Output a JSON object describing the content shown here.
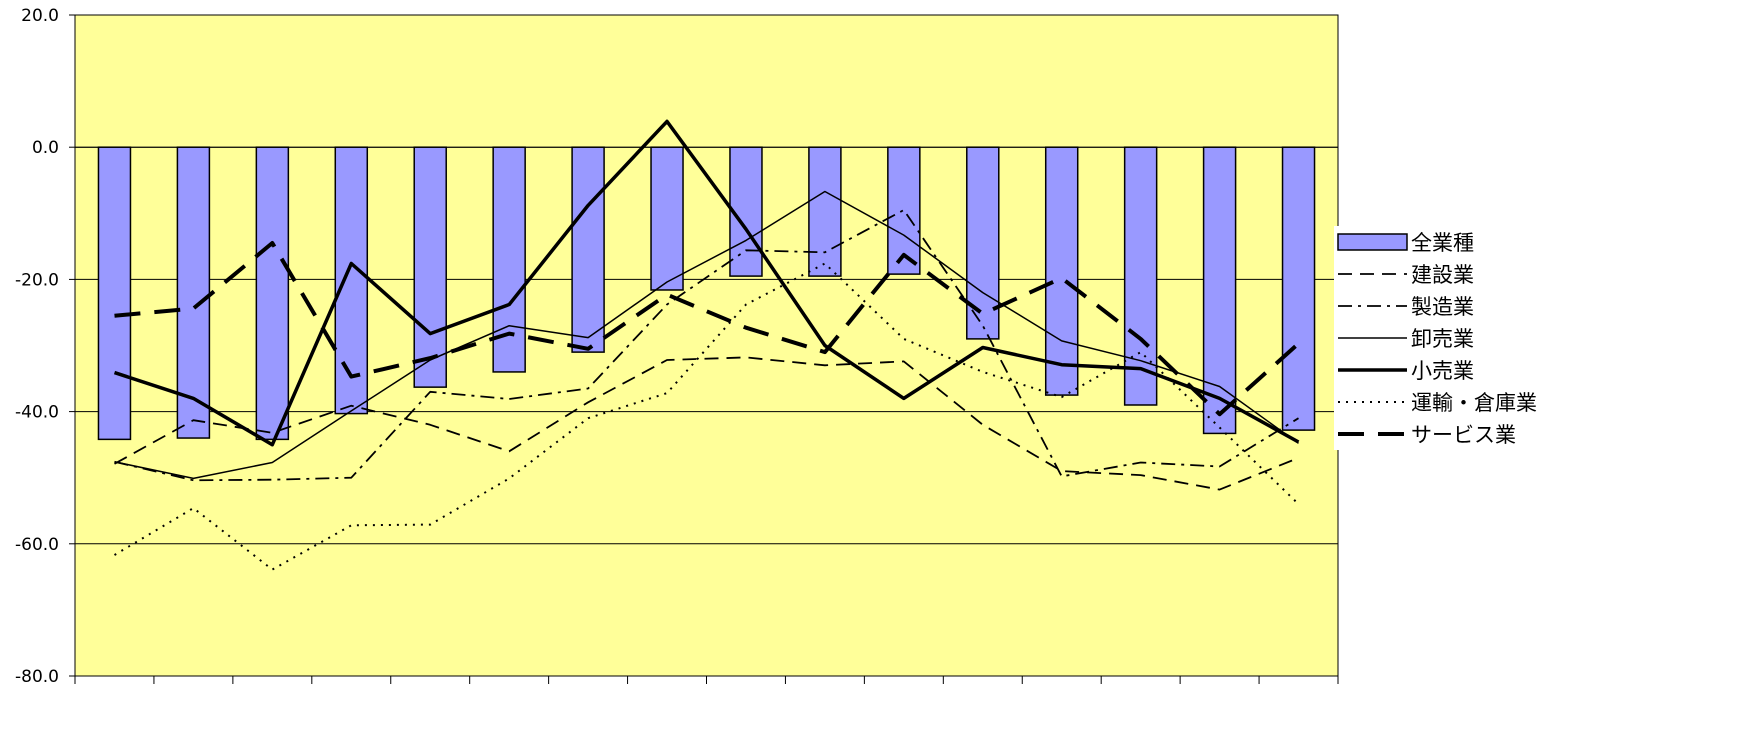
{
  "chart_data": {
    "type": "bar+line",
    "title": "",
    "xlabel": "",
    "ylabel": "",
    "ylim": [
      -80,
      20
    ],
    "yticks": [
      "20.0",
      "0.0",
      "-20.0",
      "-40.0",
      "-60.0",
      "-80.0"
    ],
    "ytick_values": [
      20,
      0,
      -20,
      -40,
      -60,
      -80
    ],
    "grid": "horizontal",
    "legend_position": "right",
    "colors": {
      "plot_background": "#FFFF99",
      "bar_fill": "#9999FF",
      "bar_stroke": "#000000",
      "line": "#000000",
      "gridline": "#000000"
    },
    "bar_series": {
      "name": "全業種",
      "values": [
        -44.2,
        -44.0,
        -44.2,
        -40.3,
        -36.3,
        -34.0,
        -31.0,
        -21.6,
        -19.5,
        -19.5,
        -19.2,
        -29.0,
        -37.5,
        -39.0,
        -43.3,
        -42.8
      ]
    },
    "series": [
      {
        "name": "建設業",
        "style": "dash",
        "values": [
          -47.9,
          -41.3,
          -43.2,
          -39.1,
          -42.0,
          -46.0,
          -38.6,
          -32.2,
          -31.8,
          -33.0,
          -32.4,
          -42.0,
          -49.0,
          -49.6,
          -51.8,
          -47.0
        ]
      },
      {
        "name": "製造業",
        "style": "dashdot",
        "values": [
          -47.6,
          -50.4,
          -50.3,
          -50.0,
          -37.0,
          -38.1,
          -36.5,
          -23.8,
          -15.6,
          -15.9,
          -9.5,
          -27.0,
          -49.8,
          -47.7,
          -48.3,
          -41.0
        ]
      },
      {
        "name": "卸売業",
        "style": "thin",
        "values": [
          -47.6,
          -50.1,
          -47.7,
          -39.9,
          -32.2,
          -27.0,
          -28.8,
          -20.4,
          -14.1,
          -6.7,
          -13.3,
          -22.0,
          -29.3,
          -32.3,
          -36.2,
          -44.8
        ]
      },
      {
        "name": "小売業",
        "style": "thick",
        "values": [
          -34.1,
          -38.0,
          -45.0,
          -17.6,
          -28.2,
          -23.8,
          -8.8,
          3.9,
          -12.4,
          -30.0,
          -38.0,
          -30.3,
          -32.9,
          -33.5,
          -38.0,
          -44.6
        ]
      },
      {
        "name": "運輸・倉庫業",
        "style": "dot",
        "values": [
          -61.7,
          -54.6,
          -63.9,
          -57.2,
          -57.1,
          -50.1,
          -41.0,
          -37.2,
          -23.8,
          -17.6,
          -29.0,
          -34.0,
          -37.8,
          -31.0,
          -42.4,
          -54.0
        ]
      },
      {
        "name": "サービス業",
        "style": "thickdash",
        "values": [
          -25.5,
          -24.4,
          -14.5,
          -34.7,
          -31.9,
          -28.2,
          -30.5,
          -22.3,
          -27.3,
          -31.0,
          -16.3,
          -25.2,
          -19.8,
          -29.0,
          -40.4,
          -29.7
        ]
      }
    ]
  }
}
